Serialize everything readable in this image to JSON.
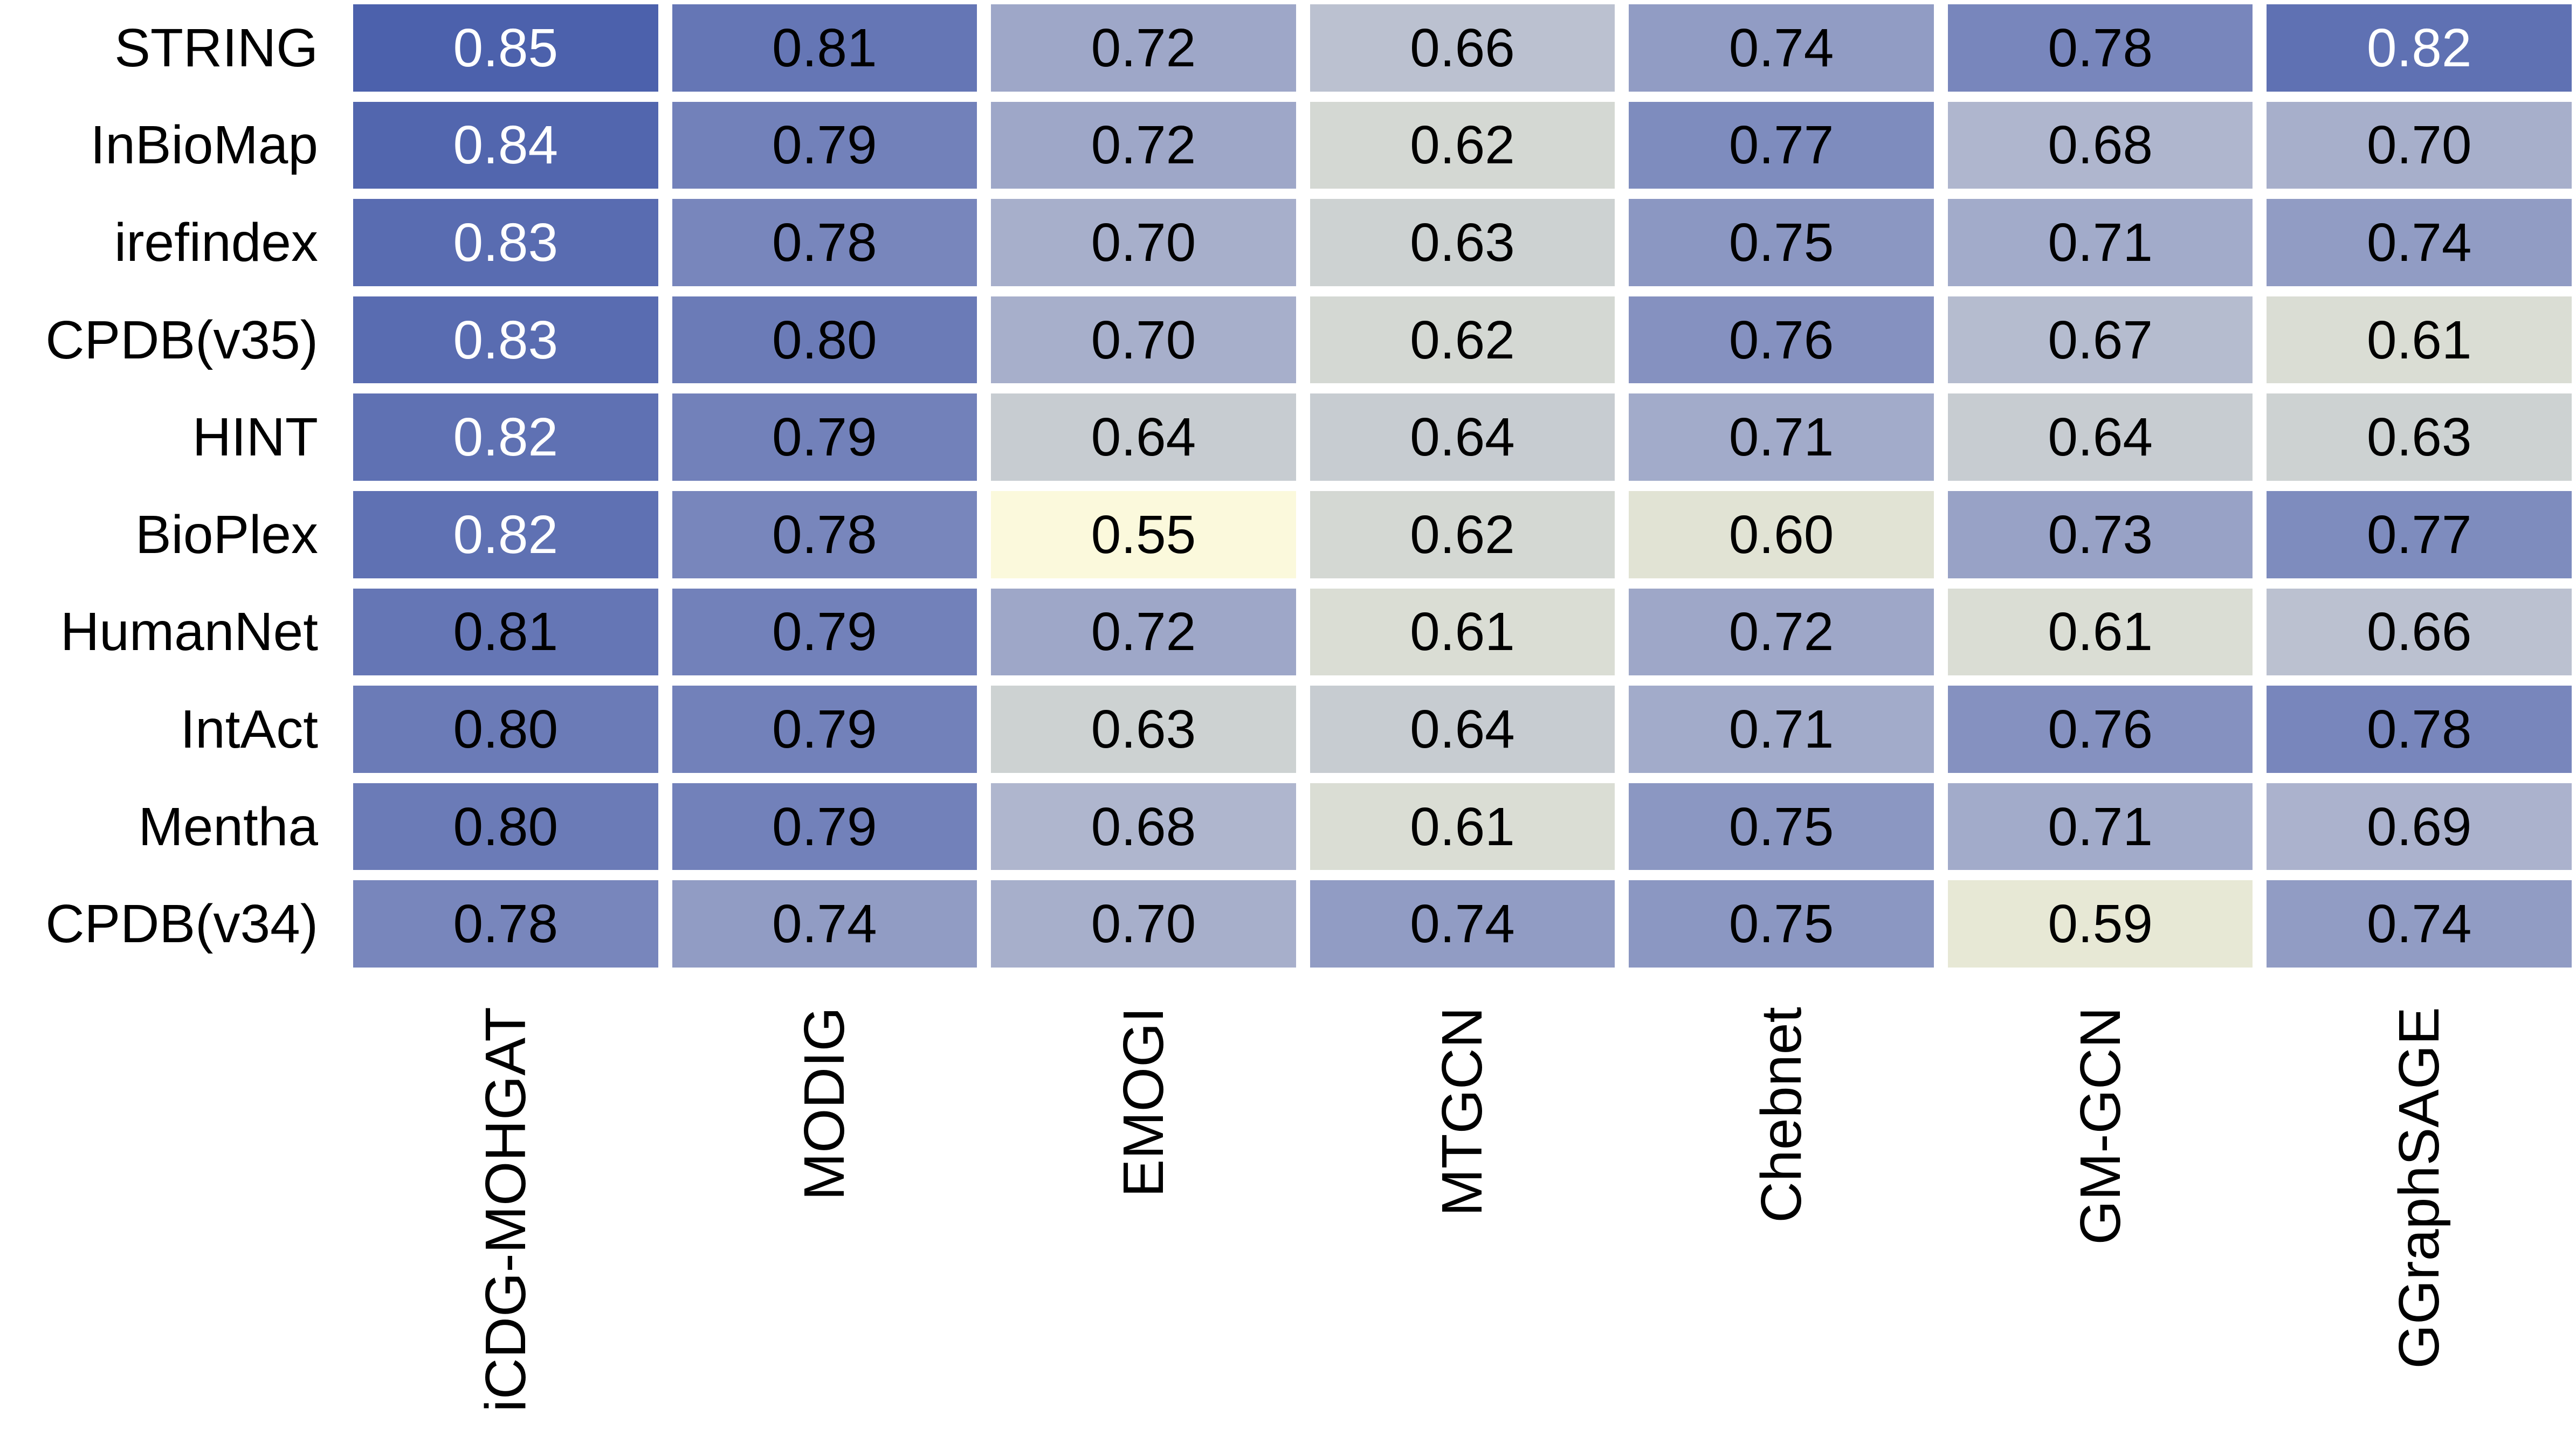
{
  "figure": {
    "background_color": "#ffffff",
    "gap_color": "#ffffff"
  },
  "chart_data": {
    "type": "heatmap",
    "title": "",
    "xlabel": "",
    "ylabel": "",
    "rows": [
      "STRING",
      "InBioMap",
      "irefindex",
      "CPDB(v35)",
      "HINT",
      "BioPlex",
      "HumanNet",
      "IntAct",
      "Mentha",
      "CPDB(v34)"
    ],
    "columns": [
      "iCDG-MOHGAT",
      "MODIG",
      "EMOGI",
      "MTGCN",
      "Chebnet",
      "GM-GCN",
      "GGraphSAGE"
    ],
    "values": [
      [
        0.85,
        0.81,
        0.72,
        0.66,
        0.74,
        0.78,
        0.82
      ],
      [
        0.84,
        0.79,
        0.72,
        0.62,
        0.77,
        0.68,
        0.7
      ],
      [
        0.83,
        0.78,
        0.7,
        0.63,
        0.75,
        0.71,
        0.74
      ],
      [
        0.83,
        0.8,
        0.7,
        0.62,
        0.76,
        0.67,
        0.61
      ],
      [
        0.82,
        0.79,
        0.64,
        0.64,
        0.71,
        0.64,
        0.63
      ],
      [
        0.82,
        0.78,
        0.55,
        0.62,
        0.6,
        0.73,
        0.77
      ],
      [
        0.81,
        0.79,
        0.72,
        0.61,
        0.72,
        0.61,
        0.66
      ],
      [
        0.8,
        0.79,
        0.63,
        0.64,
        0.71,
        0.76,
        0.78
      ],
      [
        0.8,
        0.79,
        0.68,
        0.61,
        0.75,
        0.71,
        0.69
      ],
      [
        0.78,
        0.74,
        0.7,
        0.74,
        0.75,
        0.59,
        0.74
      ]
    ],
    "value_decimals": 2,
    "vmin": 0.55,
    "vmax": 0.85,
    "grid_on": false,
    "legend": "none",
    "colormap_stops": [
      {
        "v": 0.55,
        "c": "#fbf9dc"
      },
      {
        "v": 0.59,
        "c": "#e7e8d5"
      },
      {
        "v": 0.63,
        "c": "#cdd2d2"
      },
      {
        "v": 0.68,
        "c": "#afb6ce"
      },
      {
        "v": 0.72,
        "c": "#9ea7c8"
      },
      {
        "v": 0.78,
        "c": "#7886bc"
      },
      {
        "v": 0.85,
        "c": "#4c61ac"
      }
    ],
    "cell_text_color_dark": "#000000",
    "cell_text_color_light": "#ffffff",
    "light_text_threshold": 0.815
  }
}
